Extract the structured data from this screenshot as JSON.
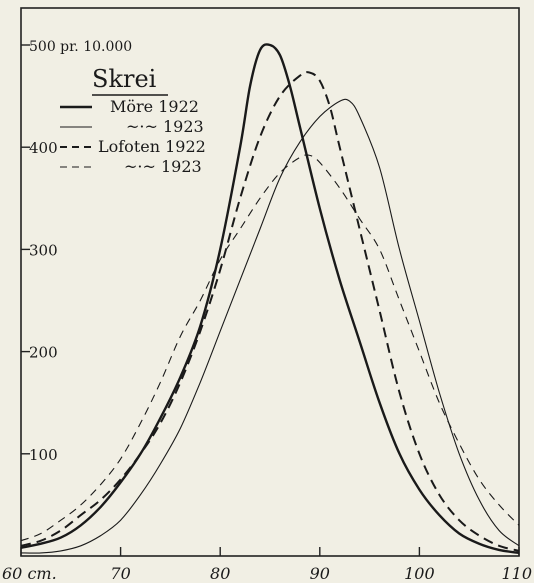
{
  "chart_data": {
    "type": "line",
    "title": "Skrei",
    "xlabel": "",
    "ylabel": "",
    "y_unit_label": "500 pr. 10.000",
    "x_unit_label": "60 cm.",
    "xlim": [
      60,
      110
    ],
    "ylim": [
      0,
      500
    ],
    "x_ticks": [
      60,
      70,
      80,
      90,
      100,
      110
    ],
    "x_tick_labels": [
      "60 cm.",
      "70",
      "80",
      "90",
      "100",
      "110"
    ],
    "y_ticks": [
      100,
      200,
      300,
      400,
      500
    ],
    "y_tick_labels": [
      "100",
      "200",
      "300",
      "400",
      "500 pr. 10.000"
    ],
    "grid": false,
    "legend_position": "top-left",
    "legend": [
      {
        "label": "Möre 1922",
        "style": "thick-solid"
      },
      {
        "label": "~·~ 1923",
        "style": "thin-solid"
      },
      {
        "label": "Lofoten 1922",
        "style": "thick-dashed"
      },
      {
        "label": "~·~ 1923",
        "style": "thin-dashed"
      }
    ],
    "series": [
      {
        "style": "thick-solid",
        "x": [
          60,
          62,
          64,
          66,
          68,
          70,
          72,
          74,
          76,
          78,
          80,
          82,
          83,
          84,
          85,
          86,
          87,
          88,
          90,
          92,
          94,
          96,
          98,
          100,
          102,
          104,
          106,
          108,
          110
        ],
        "y": [
          8,
          12,
          18,
          30,
          48,
          72,
          100,
          135,
          175,
          225,
          300,
          400,
          460,
          495,
          500,
          490,
          460,
          420,
          340,
          270,
          210,
          150,
          100,
          65,
          40,
          22,
          12,
          6,
          3
        ]
      },
      {
        "style": "thin-solid",
        "x": [
          60,
          62,
          64,
          66,
          68,
          70,
          72,
          74,
          76,
          78,
          80,
          82,
          84,
          86,
          88,
          90,
          92,
          93,
          94,
          96,
          98,
          100,
          102,
          104,
          106,
          108,
          110
        ],
        "y": [
          3,
          3,
          5,
          10,
          20,
          35,
          60,
          90,
          125,
          170,
          220,
          270,
          320,
          370,
          405,
          430,
          445,
          445,
          430,
          380,
          300,
          230,
          160,
          100,
          55,
          25,
          10
        ]
      },
      {
        "style": "thick-dashed",
        "x": [
          60,
          62,
          64,
          66,
          68,
          70,
          72,
          74,
          76,
          78,
          80,
          82,
          84,
          86,
          88,
          89,
          90,
          91,
          92,
          94,
          96,
          98,
          100,
          102,
          104,
          106,
          108,
          110
        ],
        "y": [
          10,
          15,
          25,
          40,
          55,
          75,
          100,
          130,
          170,
          220,
          280,
          350,
          410,
          450,
          470,
          473,
          465,
          440,
          400,
          320,
          240,
          160,
          100,
          60,
          35,
          20,
          10,
          5
        ]
      },
      {
        "style": "thin-dashed",
        "x": [
          60,
          62,
          64,
          66,
          68,
          70,
          72,
          74,
          76,
          78,
          80,
          82,
          84,
          86,
          88,
          89,
          90,
          92,
          94,
          96,
          98,
          100,
          102,
          104,
          106,
          108,
          110
        ],
        "y": [
          15,
          22,
          35,
          50,
          70,
          95,
          130,
          170,
          215,
          250,
          290,
          320,
          350,
          375,
          390,
          392,
          385,
          360,
          330,
          300,
          250,
          200,
          150,
          110,
          75,
          50,
          30
        ]
      }
    ]
  }
}
